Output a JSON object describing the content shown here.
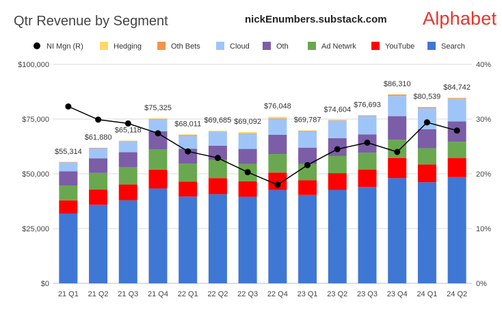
{
  "chart_data": {
    "type": "bar",
    "title": "Qtr Revenue by Segment",
    "source": "nickEnumbers.substack.com",
    "brand": "Alphabet",
    "categories": [
      "21 Q1",
      "21 Q2",
      "21 Q3",
      "21 Q4",
      "22 Q1",
      "22 Q2",
      "22 Q3",
      "22 Q4",
      "23 Q1",
      "23 Q2",
      "23 Q3",
      "23 Q4",
      "24 Q1",
      "24 Q2"
    ],
    "y_left": {
      "min": 0,
      "max": 100000,
      "ticks": [
        "$0",
        "$25,000",
        "$50,000",
        "$75,000",
        "$100,000"
      ]
    },
    "y_right": {
      "min": 0,
      "max": 0.4,
      "ticks": [
        "0%",
        "10%",
        "20%",
        "30%",
        "40%"
      ]
    },
    "legend_position": "top",
    "legend": [
      "NI Mgn (R)",
      "Hedging",
      "Oth Bets",
      "Cloud",
      "Oth",
      "Ad Netwrk",
      "YouTube",
      "Search"
    ],
    "series": [
      {
        "name": "Search",
        "color": "#3f77d4",
        "values": [
          31879,
          35845,
          37926,
          43301,
          39618,
          40689,
          39539,
          42604,
          40359,
          42628,
          44026,
          48020,
          46156,
          48509
        ]
      },
      {
        "name": "YouTube",
        "color": "#ff0000",
        "values": [
          6005,
          7002,
          7205,
          8633,
          6869,
          7340,
          7071,
          7963,
          6693,
          7665,
          7952,
          9200,
          8090,
          8663
        ]
      },
      {
        "name": "Ad Netwrk",
        "color": "#6aa84f",
        "values": [
          6800,
          7597,
          7999,
          9305,
          8174,
          8259,
          7872,
          8475,
          7496,
          7850,
          7669,
          8340,
          7413,
          7444
        ]
      },
      {
        "name": "Oth",
        "color": "#7b5ea7",
        "values": [
          6494,
          6623,
          6754,
          8161,
          6811,
          6553,
          6895,
          8796,
          7413,
          8142,
          8339,
          10794,
          8739,
          9312
        ]
      },
      {
        "name": "Cloud",
        "color": "#9fc5f8",
        "values": [
          4047,
          4628,
          4990,
          5541,
          5821,
          6276,
          6868,
          7315,
          7454,
          8031,
          8411,
          9192,
          9574,
          10347
        ]
      },
      {
        "name": "Oth Bets",
        "color": "#f6924b",
        "values": [
          198,
          192,
          182,
          181,
          440,
          193,
          209,
          226,
          288,
          285,
          297,
          657,
          495,
          365
        ]
      },
      {
        "name": "Hedging",
        "color": "#ffd966",
        "values": [
          -109,
          -7,
          61,
          203,
          278,
          375,
          638,
          669,
          84,
          3,
          -1,
          107,
          72,
          102
        ]
      }
    ],
    "totals": [
      55314,
      61880,
      65118,
      75325,
      68011,
      69685,
      69092,
      76048,
      69787,
      74604,
      76693,
      86310,
      80539,
      84742
    ],
    "total_labels": [
      "$55,314",
      "$61,880",
      "$65,118",
      "$75,325",
      "$68,011",
      "$69,685",
      "$69,092",
      "$76,048",
      "$69,787",
      "$74,604",
      "$76,693",
      "$86,310",
      "$80,539",
      "$84,742"
    ],
    "line": {
      "name": "NI Mgn (R)",
      "color": "#000000",
      "values": [
        0.323,
        0.299,
        0.292,
        0.274,
        0.241,
        0.229,
        0.203,
        0.18,
        0.216,
        0.245,
        0.257,
        0.24,
        0.294,
        0.279
      ]
    }
  }
}
